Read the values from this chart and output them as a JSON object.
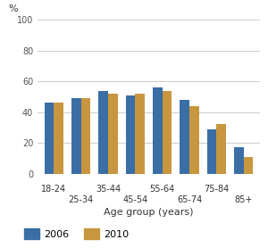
{
  "age_groups": [
    "18-24",
    "25-34",
    "35-44",
    "45-54",
    "55-64",
    "65-74",
    "75-84",
    "85+"
  ],
  "values_2006": [
    46,
    49,
    54,
    51,
    56,
    48,
    29,
    17
  ],
  "values_2010": [
    46,
    49,
    52,
    52,
    54,
    44,
    32,
    11
  ],
  "color_2006": "#3A6EA5",
  "color_2010": "#C8963E",
  "ylabel": "%",
  "xlabel": "Age group (years)",
  "ylim": [
    0,
    100
  ],
  "yticks": [
    0,
    20,
    40,
    60,
    80,
    100
  ],
  "legend_labels": [
    "2006",
    "2010"
  ],
  "bar_width": 0.35,
  "background_color": "#ffffff",
  "grid_color": "#cccccc"
}
